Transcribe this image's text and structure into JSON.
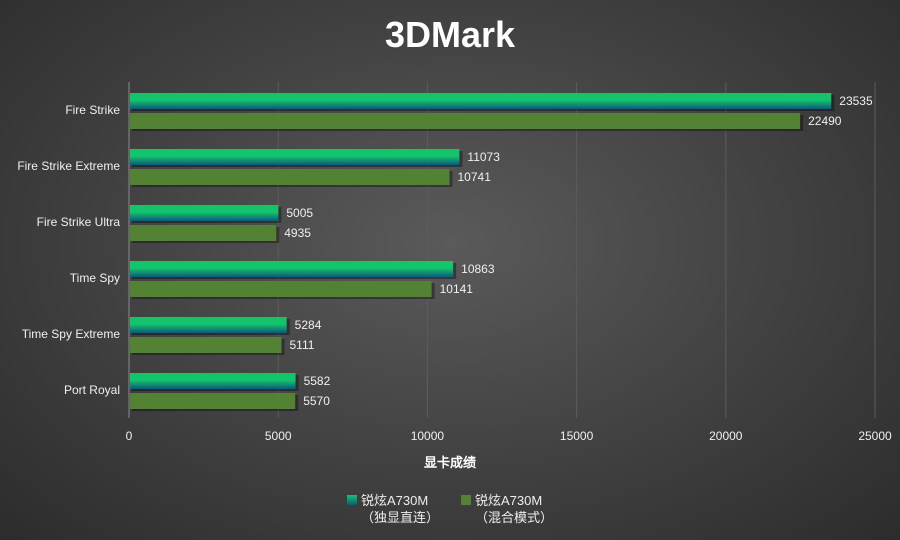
{
  "chart_data": {
    "type": "bar",
    "orientation": "horizontal",
    "title": "3DMark",
    "xlabel": "显卡成绩",
    "ylabel": "",
    "categories": [
      "Fire Strike",
      "Fire Strike Extreme",
      "Fire Strike Ultra",
      "Time Spy",
      "Time Spy Extreme",
      "Port Royal"
    ],
    "series": [
      {
        "name": "锐炫A730M",
        "name2": "（独显直连）",
        "color": "#14c46c",
        "color2": "#0b5a7c",
        "values": [
          23535,
          11073,
          5005,
          10863,
          5284,
          5582
        ]
      },
      {
        "name": "锐炫A730M",
        "name2": "（混合模式）",
        "color": "#548235",
        "values": [
          22490,
          10741,
          4935,
          10141,
          5111,
          5570
        ]
      }
    ],
    "xlim": [
      0,
      25000
    ],
    "xticks": [
      0,
      5000,
      10000,
      15000,
      20000,
      25000
    ],
    "grid": true,
    "legend": "bottom"
  }
}
